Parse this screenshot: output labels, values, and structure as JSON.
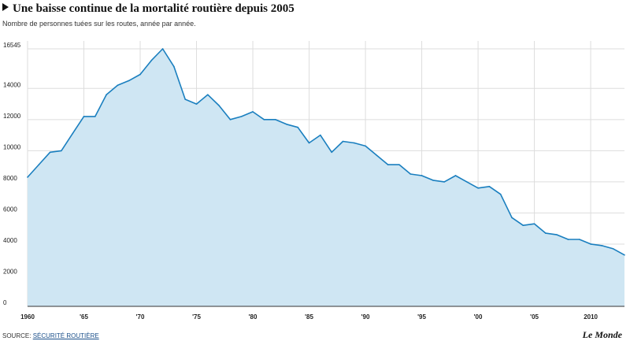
{
  "title": "Une baisse continue de la mortalité routière depuis 2005",
  "subtitle": "Nombre de personnes tuées sur les routes, année par année.",
  "source_label": "SOURCE:",
  "source_link": "SÉCURITÉ ROUTIÈRE",
  "logo": "Le Monde",
  "colors": {
    "line": "#1a7fbf",
    "area": "#cfe6f3",
    "grid": "#dddddd"
  },
  "chart_data": {
    "type": "area",
    "title": "Une baisse continue de la mortalité routière depuis 2005",
    "subtitle": "Nombre de personnes tuées sur les routes, année par année.",
    "xlabel": "",
    "ylabel": "",
    "xlim": [
      1960,
      2013
    ],
    "ylim": [
      0,
      16545
    ],
    "grid": true,
    "yticks": [
      0,
      2000,
      4000,
      6000,
      8000,
      10000,
      12000,
      14000,
      16545
    ],
    "xticks": [
      {
        "value": 1960,
        "label": "1960"
      },
      {
        "value": 1965,
        "label": "'65"
      },
      {
        "value": 1970,
        "label": "'70"
      },
      {
        "value": 1975,
        "label": "'75"
      },
      {
        "value": 1980,
        "label": "'80"
      },
      {
        "value": 1985,
        "label": "'85"
      },
      {
        "value": 1990,
        "label": "'90"
      },
      {
        "value": 1995,
        "label": "'95"
      },
      {
        "value": 2000,
        "label": "'00"
      },
      {
        "value": 2005,
        "label": "'05"
      },
      {
        "value": 2010,
        "label": "2010"
      }
    ],
    "x": [
      1960,
      1961,
      1962,
      1963,
      1964,
      1965,
      1966,
      1967,
      1968,
      1969,
      1970,
      1971,
      1972,
      1973,
      1974,
      1975,
      1976,
      1977,
      1978,
      1979,
      1980,
      1981,
      1982,
      1983,
      1984,
      1985,
      1986,
      1987,
      1988,
      1989,
      1990,
      1991,
      1992,
      1993,
      1994,
      1995,
      1996,
      1997,
      1998,
      1999,
      2000,
      2001,
      2002,
      2003,
      2004,
      2005,
      2006,
      2007,
      2008,
      2009,
      2010,
      2011,
      2012,
      2013
    ],
    "y": [
      8300,
      9100,
      9900,
      10000,
      11100,
      12200,
      12200,
      13600,
      14200,
      14500,
      14900,
      15800,
      16545,
      15400,
      13300,
      13000,
      13600,
      12900,
      12000,
      12200,
      12500,
      12000,
      12000,
      11700,
      11500,
      10500,
      11000,
      9900,
      10600,
      10500,
      10300,
      9700,
      9100,
      9100,
      8500,
      8400,
      8100,
      8000,
      8400,
      8000,
      7600,
      7700,
      7200,
      5700,
      5200,
      5300,
      4700,
      4600,
      4300,
      4300,
      4000,
      3900,
      3700,
      3300
    ]
  }
}
